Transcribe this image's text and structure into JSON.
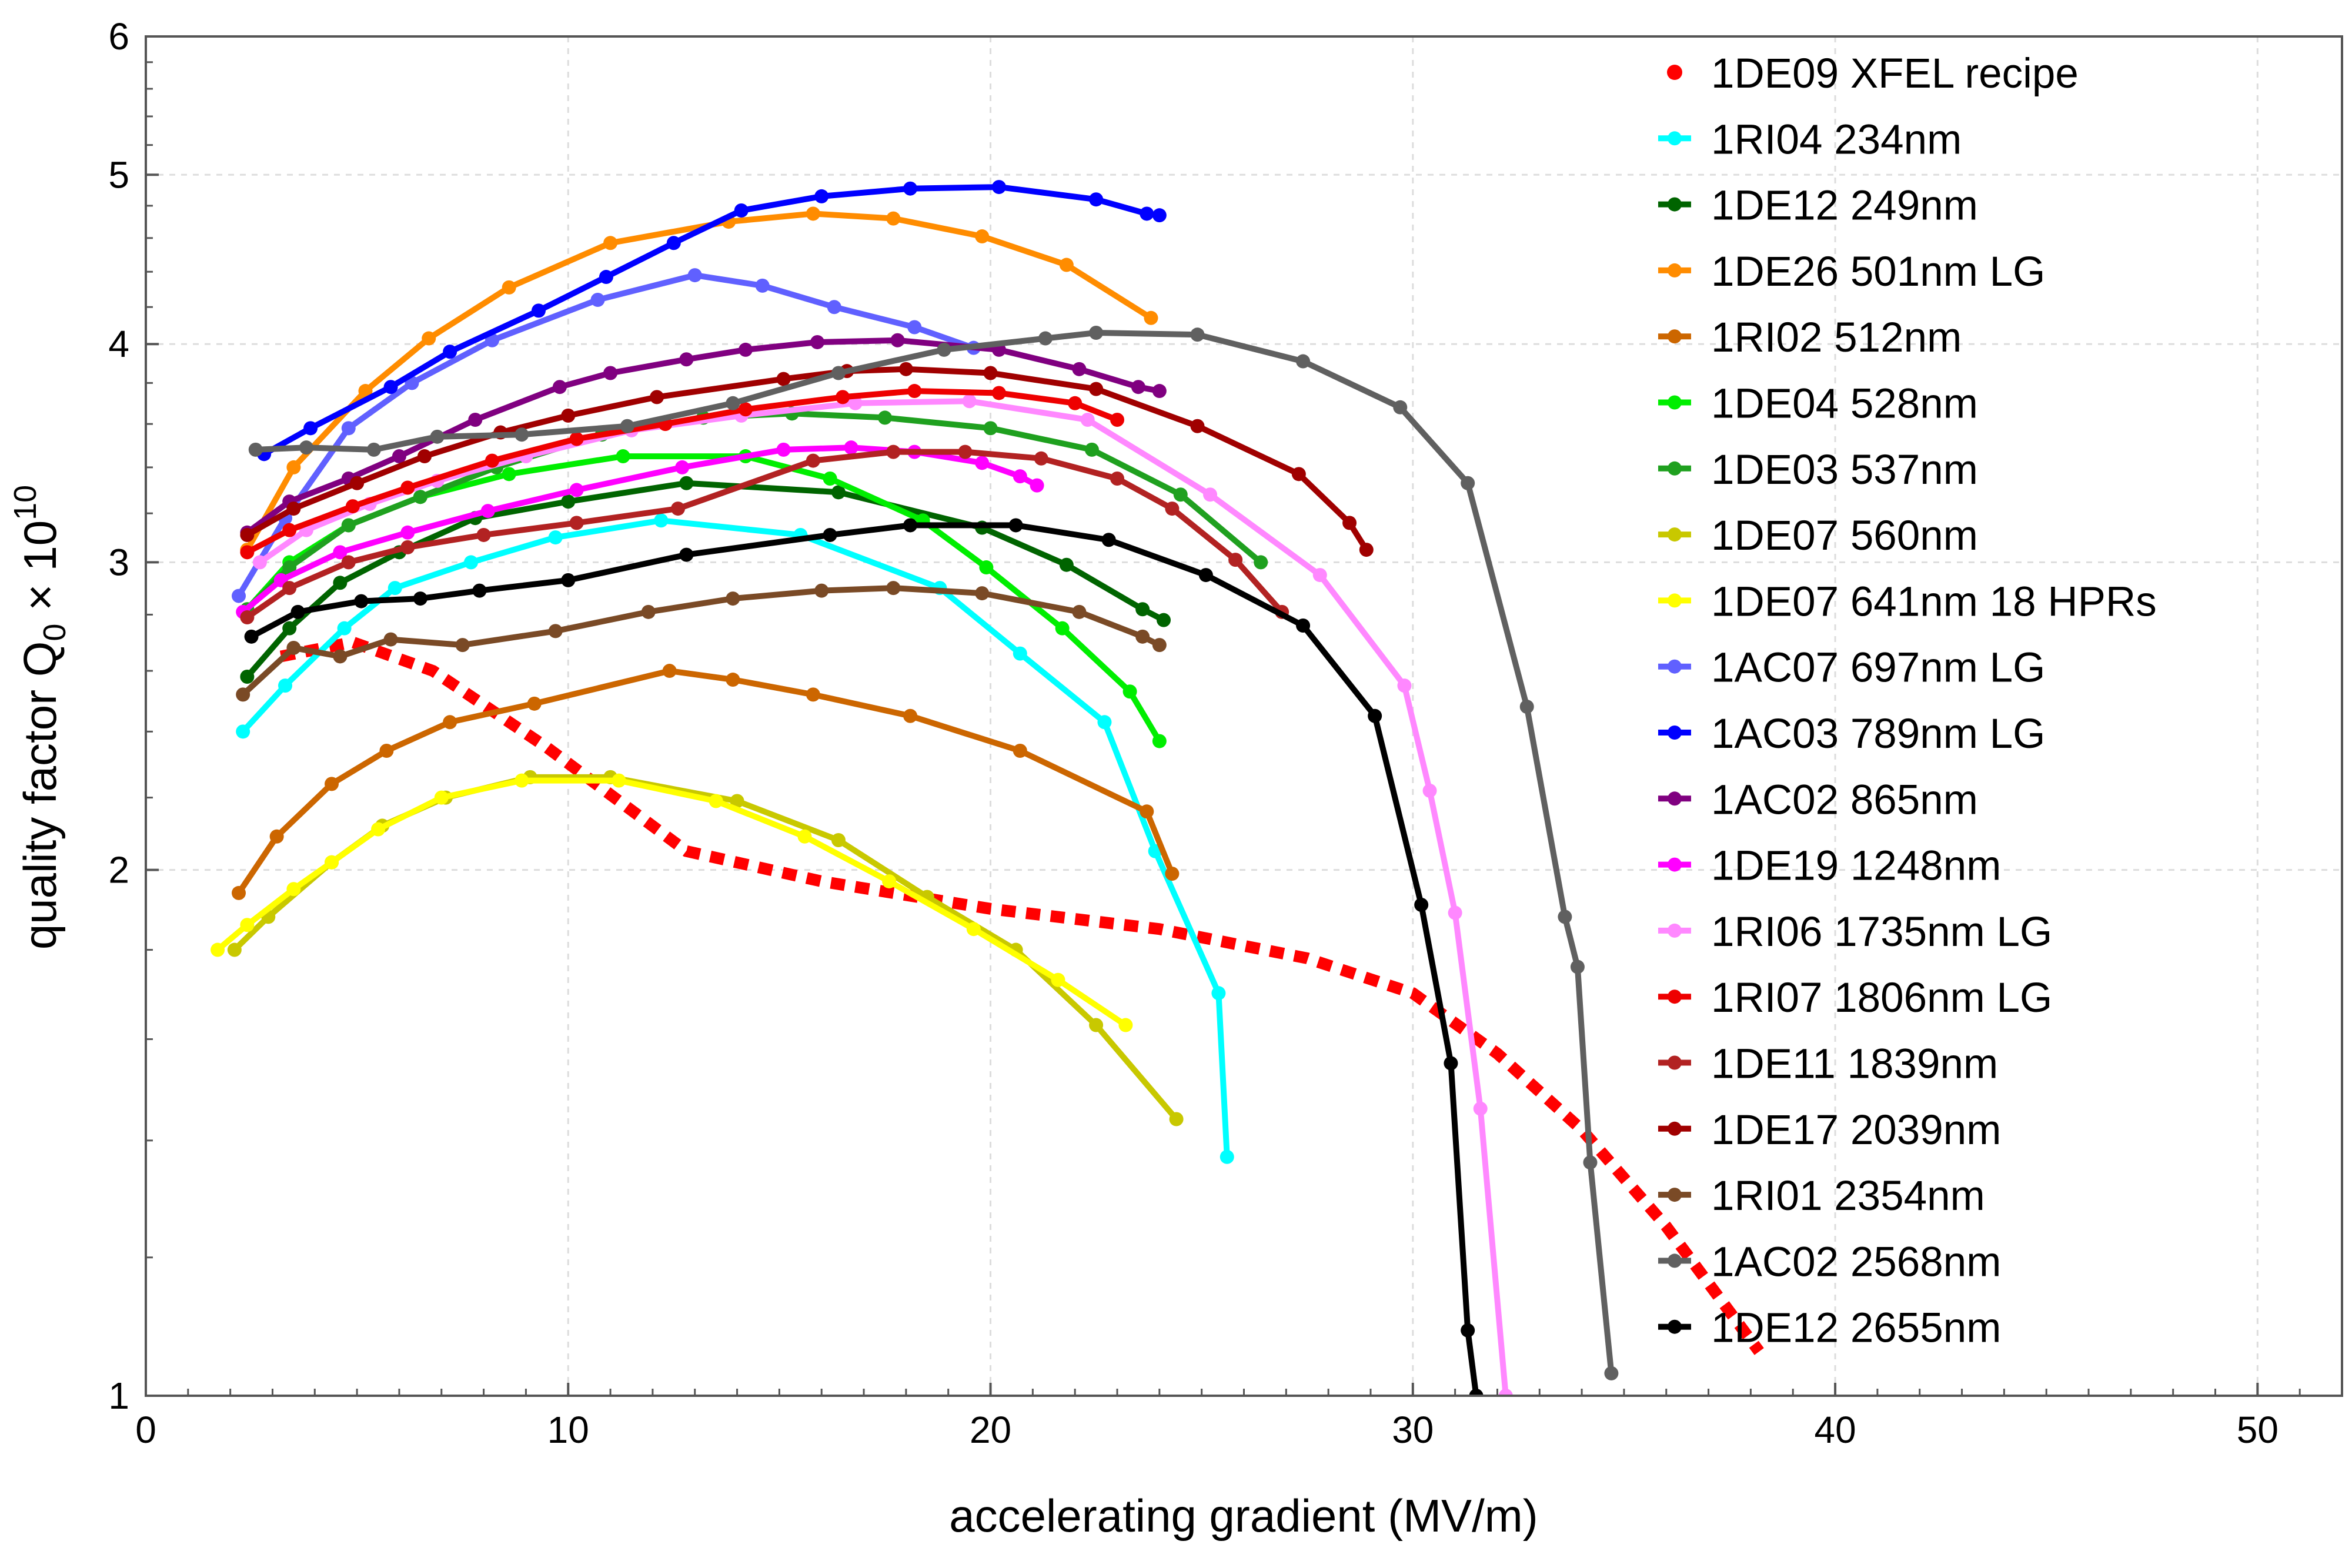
{
  "chart_data": {
    "type": "line",
    "title": "",
    "xlabel": "accelerating gradient (MV/m)",
    "ylabel_prefix": "quality factor Q",
    "ylabel_sub": "0",
    "ylabel_mid": " × 10",
    "ylabel_sup": "10",
    "xlim": [
      0,
      52
    ],
    "ylim": [
      1,
      6
    ],
    "yscale": "log",
    "xticks": [
      0,
      10,
      20,
      30,
      40,
      50
    ],
    "xtick_labels": [
      "0",
      "10",
      "20",
      "30",
      "40",
      "50"
    ],
    "yticks": [
      1,
      2,
      3,
      4,
      5,
      6
    ],
    "ytick_labels": [
      "1",
      "2",
      "3",
      "4",
      "5",
      "6"
    ],
    "grid": true,
    "legend_position": "right",
    "series": [
      {
        "name": "1DE09 XFEL recipe",
        "color": "#ff0000",
        "style": "dotted",
        "x": [
          3.2,
          4.9,
          6.8,
          9.5,
          12.8,
          16.0,
          20.0,
          24.0,
          27.5,
          30.0,
          32.0,
          34.0,
          36.0,
          38.2
        ],
        "y": [
          2.65,
          2.7,
          2.6,
          2.35,
          2.05,
          1.97,
          1.9,
          1.85,
          1.78,
          1.7,
          1.57,
          1.42,
          1.25,
          1.06
        ]
      },
      {
        "name": "1RI04  234nm",
        "color": "#00ffff",
        "style": "solid",
        "x": [
          2.3,
          3.3,
          4.7,
          5.9,
          7.7,
          9.7,
          12.2,
          15.5,
          18.8,
          20.7,
          22.7,
          23.9,
          25.4,
          25.6
        ],
        "y": [
          2.4,
          2.55,
          2.75,
          2.9,
          3.0,
          3.1,
          3.17,
          3.11,
          2.9,
          2.66,
          2.43,
          2.05,
          1.7,
          1.37
        ]
      },
      {
        "name": "1DE12 249nm",
        "color": "#006400",
        "style": "solid",
        "x": [
          2.4,
          3.4,
          4.6,
          6.0,
          7.8,
          10.0,
          12.8,
          16.4,
          19.8,
          21.8,
          23.6,
          24.1
        ],
        "y": [
          2.58,
          2.75,
          2.92,
          3.04,
          3.18,
          3.25,
          3.33,
          3.29,
          3.14,
          2.99,
          2.82,
          2.78
        ]
      },
      {
        "name": "1DE26 501nm  LG",
        "color": "#ff8c00",
        "style": "solid",
        "x": [
          2.4,
          3.5,
          5.2,
          6.7,
          8.6,
          11.0,
          13.8,
          15.8,
          17.7,
          19.8,
          21.8,
          23.8
        ],
        "y": [
          3.05,
          3.4,
          3.76,
          4.03,
          4.31,
          4.57,
          4.7,
          4.75,
          4.72,
          4.61,
          4.44,
          4.14
        ]
      },
      {
        "name": "1RI02  512nm",
        "color": "#cc6600",
        "style": "solid",
        "x": [
          2.2,
          3.1,
          4.4,
          5.7,
          7.2,
          9.2,
          12.4,
          13.9,
          15.8,
          18.1,
          20.7,
          23.7,
          24.3
        ],
        "y": [
          1.94,
          2.09,
          2.24,
          2.34,
          2.43,
          2.49,
          2.6,
          2.57,
          2.52,
          2.45,
          2.34,
          2.16,
          1.99
        ]
      },
      {
        "name": "1DE04 528nm",
        "color": "#00ee00",
        "style": "solid",
        "x": [
          2.4,
          3.4,
          4.8,
          6.5,
          8.6,
          11.3,
          14.2,
          16.2,
          18.4,
          19.9,
          21.7,
          23.3,
          24.0
        ],
        "y": [
          2.82,
          3.0,
          3.15,
          3.27,
          3.37,
          3.45,
          3.45,
          3.35,
          3.17,
          2.98,
          2.75,
          2.53,
          2.37
        ]
      },
      {
        "name": "1DE03 537nm",
        "color": "#1fa01f",
        "style": "solid",
        "x": [
          2.4,
          3.4,
          4.8,
          6.5,
          8.3,
          10.8,
          13.2,
          15.3,
          17.5,
          20.0,
          22.4,
          24.5,
          26.4
        ],
        "y": [
          2.82,
          2.98,
          3.15,
          3.27,
          3.4,
          3.55,
          3.63,
          3.65,
          3.63,
          3.58,
          3.48,
          3.28,
          3.0
        ]
      },
      {
        "name": "1DE07 560nm",
        "color": "#c8c800",
        "style": "solid",
        "x": [
          2.1,
          2.9,
          4.4,
          5.6,
          7.1,
          9.1,
          11.0,
          14.0,
          16.4,
          18.5,
          20.6,
          22.5,
          24.4
        ],
        "y": [
          1.8,
          1.88,
          2.02,
          2.12,
          2.2,
          2.26,
          2.26,
          2.19,
          2.08,
          1.93,
          1.8,
          1.63,
          1.44
        ]
      },
      {
        "name": "1DE07 641nm  18 HPRs",
        "color": "#ffff00",
        "style": "solid",
        "x": [
          1.7,
          2.4,
          3.5,
          4.4,
          5.5,
          7.0,
          8.9,
          11.2,
          13.5,
          15.6,
          17.6,
          19.6,
          21.6,
          23.2
        ],
        "y": [
          1.8,
          1.86,
          1.95,
          2.02,
          2.11,
          2.2,
          2.25,
          2.25,
          2.19,
          2.09,
          1.97,
          1.85,
          1.73,
          1.63
        ]
      },
      {
        "name": "1AC07 697nm  LG",
        "color": "#6060ff",
        "style": "solid",
        "x": [
          2.2,
          3.3,
          4.8,
          6.3,
          8.2,
          10.7,
          13.0,
          14.6,
          16.3,
          18.2,
          19.6
        ],
        "y": [
          2.87,
          3.18,
          3.58,
          3.8,
          4.02,
          4.24,
          4.38,
          4.32,
          4.2,
          4.09,
          3.98
        ]
      },
      {
        "name": "1AC03 789nm  LG",
        "color": "#0000ff",
        "style": "solid",
        "x": [
          2.8,
          3.9,
          5.8,
          7.2,
          9.3,
          10.9,
          12.5,
          14.1,
          16.0,
          18.1,
          20.2,
          22.5,
          23.7,
          24.0
        ],
        "y": [
          3.46,
          3.58,
          3.78,
          3.96,
          4.18,
          4.37,
          4.57,
          4.77,
          4.86,
          4.91,
          4.92,
          4.84,
          4.75,
          4.74
        ]
      },
      {
        "name": "1AC02 865nm",
        "color": "#800080",
        "style": "solid",
        "x": [
          2.4,
          3.4,
          4.8,
          6.0,
          7.8,
          9.8,
          11.0,
          12.8,
          14.2,
          15.9,
          17.8,
          20.2,
          22.1,
          23.5,
          24.0
        ],
        "y": [
          3.12,
          3.25,
          3.35,
          3.45,
          3.62,
          3.78,
          3.85,
          3.92,
          3.97,
          4.01,
          4.02,
          3.97,
          3.87,
          3.78,
          3.76
        ]
      },
      {
        "name": "1DE19 1248nm",
        "color": "#ff00ff",
        "style": "solid",
        "x": [
          2.3,
          3.2,
          4.6,
          6.2,
          8.1,
          10.2,
          12.7,
          15.1,
          16.7,
          18.2,
          19.8,
          20.7,
          21.1
        ],
        "y": [
          2.81,
          2.93,
          3.04,
          3.12,
          3.21,
          3.3,
          3.4,
          3.48,
          3.49,
          3.47,
          3.42,
          3.36,
          3.32
        ]
      },
      {
        "name": "1RI06  1735nm LG",
        "color": "#ff88ff",
        "style": "solid",
        "x": [
          2.7,
          3.8,
          5.3,
          6.9,
          9.0,
          11.5,
          14.1,
          16.8,
          19.5,
          22.3,
          25.2,
          27.8,
          29.8,
          30.4,
          31.0,
          31.6,
          32.2
        ],
        "y": [
          3.0,
          3.13,
          3.24,
          3.34,
          3.45,
          3.57,
          3.64,
          3.7,
          3.71,
          3.62,
          3.28,
          2.95,
          2.55,
          2.22,
          1.89,
          1.46,
          1.0
        ]
      },
      {
        "name": "1RI07  1806nm LG",
        "color": "#ee0000",
        "style": "solid",
        "x": [
          2.4,
          3.4,
          4.9,
          6.2,
          8.2,
          10.2,
          12.3,
          14.2,
          16.5,
          18.2,
          20.2,
          22.0,
          23.0
        ],
        "y": [
          3.04,
          3.13,
          3.23,
          3.31,
          3.43,
          3.53,
          3.6,
          3.67,
          3.73,
          3.76,
          3.75,
          3.7,
          3.62
        ]
      },
      {
        "name": "1DE11 1839nm",
        "color": "#b22222",
        "style": "solid",
        "x": [
          2.4,
          3.4,
          4.8,
          6.2,
          8.0,
          10.2,
          12.6,
          15.8,
          17.7,
          19.4,
          21.2,
          23.0,
          24.3,
          25.8,
          26.9
        ],
        "y": [
          2.79,
          2.9,
          3.0,
          3.06,
          3.11,
          3.16,
          3.22,
          3.43,
          3.47,
          3.47,
          3.44,
          3.35,
          3.22,
          3.01,
          2.81
        ]
      },
      {
        "name": "1DE17 2039nm",
        "color": "#a00000",
        "style": "solid",
        "x": [
          2.4,
          3.5,
          5.0,
          6.6,
          8.4,
          10.0,
          12.1,
          15.1,
          16.6,
          18.0,
          20.0,
          22.5,
          24.9,
          27.3,
          28.5,
          28.9
        ],
        "y": [
          3.11,
          3.22,
          3.33,
          3.45,
          3.56,
          3.64,
          3.73,
          3.82,
          3.86,
          3.87,
          3.85,
          3.77,
          3.59,
          3.37,
          3.16,
          3.05
        ]
      },
      {
        "name": "1RI01  2354nm",
        "color": "#7a4a26",
        "style": "solid",
        "x": [
          2.3,
          3.5,
          4.6,
          5.8,
          7.5,
          9.7,
          11.9,
          13.9,
          16.0,
          17.7,
          19.8,
          22.1,
          23.6,
          24.0
        ],
        "y": [
          2.52,
          2.68,
          2.65,
          2.71,
          2.69,
          2.74,
          2.81,
          2.86,
          2.89,
          2.9,
          2.88,
          2.81,
          2.72,
          2.69
        ]
      },
      {
        "name": "1AC02 2568nm",
        "color": "#606060",
        "style": "solid",
        "x": [
          2.6,
          3.8,
          5.4,
          6.9,
          8.9,
          11.4,
          13.9,
          16.4,
          18.9,
          21.3,
          22.5,
          24.9,
          27.4,
          29.7,
          31.3,
          32.7,
          33.6,
          33.9,
          34.2,
          34.7
        ],
        "y": [
          3.48,
          3.49,
          3.48,
          3.54,
          3.55,
          3.59,
          3.7,
          3.85,
          3.97,
          4.03,
          4.06,
          4.05,
          3.91,
          3.68,
          3.33,
          2.48,
          1.88,
          1.76,
          1.36,
          1.03
        ]
      },
      {
        "name": "1DE12 2655nm",
        "color": "#000000",
        "style": "solid",
        "x": [
          2.5,
          3.6,
          5.1,
          6.5,
          7.9,
          10.0,
          12.8,
          16.2,
          18.1,
          20.6,
          22.8,
          25.1,
          27.4,
          29.1,
          30.2,
          30.9,
          31.3,
          31.5
        ],
        "y": [
          2.72,
          2.81,
          2.85,
          2.86,
          2.89,
          2.93,
          3.03,
          3.11,
          3.15,
          3.15,
          3.09,
          2.95,
          2.76,
          2.45,
          1.91,
          1.55,
          1.09,
          1.0
        ]
      }
    ]
  }
}
